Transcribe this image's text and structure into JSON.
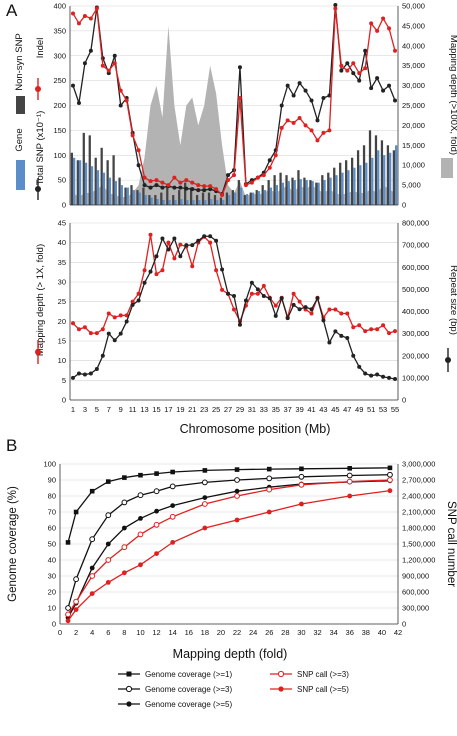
{
  "panel_labels": {
    "a": "A",
    "b": "B"
  },
  "colors": {
    "black": "#222222",
    "red": "#e02020",
    "gray": "#b3b3b3",
    "blue": "#5b8ec9",
    "dark_bar": "#444444"
  },
  "chart_data": [
    {
      "type": "line",
      "panel": "A-top",
      "x": [
        1,
        2,
        3,
        4,
        5,
        6,
        7,
        8,
        9,
        10,
        11,
        12,
        13,
        14,
        15,
        16,
        17,
        18,
        19,
        20,
        21,
        22,
        23,
        24,
        25,
        26,
        27,
        28,
        29,
        30,
        31,
        32,
        33,
        34,
        35,
        36,
        37,
        38,
        39,
        40,
        41,
        42,
        43,
        44,
        45,
        46,
        47,
        48,
        49,
        50,
        51,
        52,
        53,
        54,
        55
      ],
      "ylim_left": [
        0,
        400
      ],
      "yticks_left": [
        "0",
        "50",
        "100",
        "150",
        "200",
        "250",
        "300",
        "350",
        "400"
      ],
      "ylim_right": [
        0,
        50000
      ],
      "yticks_right": [
        "0",
        "5,000",
        "10,000",
        "15,000",
        "20,000",
        "25,000",
        "30,000",
        "35,000",
        "40,000",
        "45,000",
        "50,000"
      ],
      "left_labels": [
        "Non-syn SNP",
        "Indel",
        "Gene",
        "Total SNP (x10⁻¹)"
      ],
      "right_labels": [
        "Mapping depth (>100X, fold)"
      ],
      "series": [
        {
          "name": "Total SNP (x10⁻¹)",
          "color": "#222222",
          "axis": "left",
          "values": [
            240,
            205,
            285,
            310,
            397,
            295,
            265,
            300,
            200,
            215,
            145,
            80,
            40,
            35,
            40,
            35,
            38,
            35,
            35,
            33,
            32,
            30,
            30,
            32,
            28,
            22,
            60,
            70,
            277,
            42,
            50,
            55,
            65,
            90,
            110,
            200,
            240,
            220,
            245,
            230,
            210,
            170,
            215,
            220,
            402,
            270,
            285,
            265,
            250,
            310,
            235,
            255,
            230,
            240,
            210
          ]
        },
        {
          "name": "Indel",
          "color": "#e02020",
          "axis": "left",
          "values": [
            385,
            365,
            380,
            375,
            395,
            280,
            270,
            285,
            230,
            210,
            140,
            110,
            55,
            48,
            50,
            45,
            40,
            55,
            45,
            50,
            45,
            40,
            38,
            38,
            32,
            20,
            50,
            60,
            215,
            40,
            45,
            55,
            60,
            75,
            100,
            155,
            170,
            165,
            175,
            160,
            150,
            130,
            145,
            150,
            395,
            280,
            270,
            285,
            265,
            275,
            365,
            350,
            375,
            355,
            310
          ]
        },
        {
          "name": "Gene",
          "color": "#5b8ec9",
          "axis": "left",
          "kind": "bar",
          "values": [
            95,
            90,
            85,
            78,
            70,
            65,
            55,
            48,
            40,
            35,
            30,
            25,
            20,
            15,
            12,
            10,
            10,
            10,
            12,
            10,
            10,
            10,
            10,
            12,
            10,
            10,
            20,
            25,
            35,
            22,
            25,
            28,
            30,
            35,
            40,
            45,
            48,
            50,
            52,
            50,
            48,
            45,
            50,
            55,
            60,
            65,
            70,
            75,
            80,
            85,
            95,
            110,
            100,
            105,
            120
          ]
        },
        {
          "name": "Non-syn SNP",
          "color": "#444444",
          "axis": "left",
          "kind": "bar",
          "values": [
            105,
            90,
            145,
            140,
            95,
            115,
            90,
            100,
            55,
            35,
            40,
            30,
            35,
            20,
            20,
            25,
            40,
            20,
            30,
            45,
            35,
            20,
            25,
            25,
            20,
            15,
            25,
            30,
            50,
            20,
            25,
            30,
            40,
            50,
            60,
            65,
            60,
            55,
            70,
            55,
            50,
            45,
            60,
            65,
            75,
            85,
            90,
            95,
            110,
            120,
            150,
            140,
            130,
            120,
            110
          ]
        },
        {
          "name": "Mapping depth (>100X, fold)",
          "color": "#b3b3b3",
          "axis": "right",
          "kind": "area",
          "values": [
            3000,
            2000,
            3000,
            3000,
            4000,
            5000,
            3000,
            2500,
            2000,
            2000,
            3000,
            5000,
            12000,
            25000,
            30000,
            22000,
            45000,
            25000,
            15000,
            25000,
            27000,
            20000,
            25000,
            35000,
            28000,
            15000,
            5000,
            3000,
            6000,
            2000,
            3000,
            2500,
            3000,
            4000,
            3000,
            4000,
            5000,
            3000,
            5000,
            4000,
            5000,
            4000,
            3000,
            4000,
            3000,
            2500,
            3000,
            3500,
            3000,
            3000,
            4000,
            3000,
            5000,
            4000,
            3000
          ]
        }
      ]
    },
    {
      "type": "line",
      "panel": "A-bottom",
      "x": [
        1,
        2,
        3,
        4,
        5,
        6,
        7,
        8,
        9,
        10,
        11,
        12,
        13,
        14,
        15,
        16,
        17,
        18,
        19,
        20,
        21,
        22,
        23,
        24,
        25,
        26,
        27,
        28,
        29,
        30,
        31,
        32,
        33,
        34,
        35,
        36,
        37,
        38,
        39,
        40,
        41,
        42,
        43,
        44,
        45,
        46,
        47,
        48,
        49,
        50,
        51,
        52,
        53,
        54,
        55
      ],
      "xlabel": "Chromosome position (Mb)",
      "xticks": [
        "1",
        "3",
        "5",
        "7",
        "9",
        "11",
        "13",
        "15",
        "17",
        "19",
        "21",
        "23",
        "25",
        "27",
        "29",
        "31",
        "33",
        "35",
        "37",
        "39",
        "41",
        "43",
        "45",
        "47",
        "49",
        "51",
        "53",
        "55"
      ],
      "ylim_left": [
        0,
        45
      ],
      "yticks_left": [
        "0",
        "5",
        "10",
        "15",
        "20",
        "25",
        "30",
        "35",
        "40",
        "45"
      ],
      "ylim_right": [
        0,
        800000
      ],
      "yticks_right": [
        "0",
        "100,000",
        "200,000",
        "300,000",
        "400,000",
        "500,000",
        "600,000",
        "700,000",
        "800,000"
      ],
      "ylabel_left": "Mapping depth (> 1X, fold)",
      "ylabel_right": "Repeat size (bp)",
      "series": [
        {
          "name": "Mapping depth (> 1X, fold)",
          "color": "#e02020",
          "axis": "left",
          "values": [
            19.5,
            18,
            18.5,
            17,
            17,
            18,
            22,
            21,
            21.5,
            21.5,
            25,
            27,
            33,
            42,
            32,
            33,
            40,
            36,
            39.5,
            39,
            34,
            40,
            41.5,
            40,
            33,
            28,
            27,
            23,
            20,
            24,
            27,
            27,
            29,
            26,
            24,
            26,
            21,
            27,
            25,
            23,
            22,
            26,
            21,
            23,
            23,
            22,
            22,
            18.5,
            19,
            17.5,
            18,
            18,
            19,
            17,
            17.5
          ]
        },
        {
          "name": "Repeat size (bp)",
          "color": "#222222",
          "axis": "right",
          "values": [
            100000,
            120000,
            115000,
            120000,
            140000,
            200000,
            300000,
            270000,
            300000,
            355000,
            430000,
            450000,
            530000,
            580000,
            650000,
            730000,
            680000,
            730000,
            650000,
            700000,
            700000,
            720000,
            740000,
            740000,
            720000,
            590000,
            480000,
            470000,
            340000,
            450000,
            530000,
            500000,
            470000,
            460000,
            380000,
            460000,
            370000,
            430000,
            410000,
            420000,
            410000,
            460000,
            360000,
            260000,
            310000,
            290000,
            280000,
            200000,
            150000,
            120000,
            110000,
            115000,
            105000,
            100000,
            95000
          ]
        }
      ]
    },
    {
      "type": "line",
      "panel": "B",
      "xlabel": "Mapping depth (fold)",
      "xticks": [
        "0",
        "2",
        "4",
        "6",
        "8",
        "10",
        "12",
        "14",
        "16",
        "18",
        "20",
        "22",
        "24",
        "26",
        "28",
        "30",
        "32",
        "34",
        "36",
        "38",
        "40",
        "42"
      ],
      "xlim": [
        0,
        42
      ],
      "ylabel_left": "Genome coverage (%)",
      "yticks_left": [
        "0",
        "10",
        "20",
        "30",
        "40",
        "50",
        "60",
        "70",
        "80",
        "90",
        "100"
      ],
      "ylim_left": [
        0,
        100
      ],
      "ylabel_right": "SNP call number",
      "yticks_right": [
        "0",
        "300,000",
        "600,000",
        "900,000",
        "1,200,000",
        "1,500,000",
        "1,800,000",
        "2,100,000",
        "2,400,000",
        "2,700,000",
        "3,000,000"
      ],
      "ylim_right": [
        0,
        3000000
      ],
      "grid": true,
      "legend": "bottom",
      "series": [
        {
          "name": "Genome coverage (>=1)",
          "color": "#111111",
          "axis": "left",
          "marker": "square",
          "x": [
            1,
            2,
            4,
            6,
            8,
            10,
            12,
            14,
            18,
            22,
            26,
            30,
            36,
            41
          ],
          "values": [
            51,
            70,
            83,
            89,
            91.5,
            93,
            94,
            95,
            96,
            96.5,
            96.8,
            97,
            97.3,
            97.6
          ]
        },
        {
          "name": "Genome coverage (>=3)",
          "color": "#111111",
          "axis": "left",
          "marker": "open-circle",
          "x": [
            1,
            2,
            4,
            6,
            8,
            10,
            12,
            14,
            18,
            22,
            26,
            30,
            36,
            41
          ],
          "values": [
            10,
            28,
            53,
            68,
            76,
            80.5,
            83,
            86,
            88.5,
            90,
            91,
            92,
            92.8,
            93.3
          ]
        },
        {
          "name": "Genome coverage (>=5)",
          "color": "#111111",
          "axis": "left",
          "marker": "filled-circle",
          "x": [
            1,
            2,
            4,
            6,
            8,
            10,
            12,
            14,
            18,
            22,
            26,
            30,
            36,
            41
          ],
          "values": [
            4,
            13,
            35,
            50,
            60,
            66,
            70.5,
            74,
            79,
            83,
            85.5,
            87.5,
            88.8,
            89.5
          ]
        },
        {
          "name": "SNP call (>=3)",
          "color": "#e02020",
          "axis": "right",
          "marker": "open-circle",
          "x": [
            1,
            2,
            4,
            6,
            8,
            10,
            12,
            14,
            18,
            22,
            26,
            30,
            36,
            41
          ],
          "values": [
            180000,
            420000,
            900000,
            1200000,
            1440000,
            1680000,
            1860000,
            2010000,
            2250000,
            2400000,
            2520000,
            2610000,
            2670000,
            2700000
          ]
        },
        {
          "name": "SNP call (>=5)",
          "color": "#e02020",
          "axis": "right",
          "marker": "filled-circle",
          "x": [
            1,
            2,
            4,
            6,
            8,
            10,
            12,
            14,
            18,
            22,
            26,
            30,
            36,
            41
          ],
          "values": [
            60000,
            270000,
            570000,
            780000,
            960000,
            1110000,
            1320000,
            1530000,
            1800000,
            1950000,
            2100000,
            2250000,
            2400000,
            2500000
          ]
        }
      ]
    }
  ]
}
